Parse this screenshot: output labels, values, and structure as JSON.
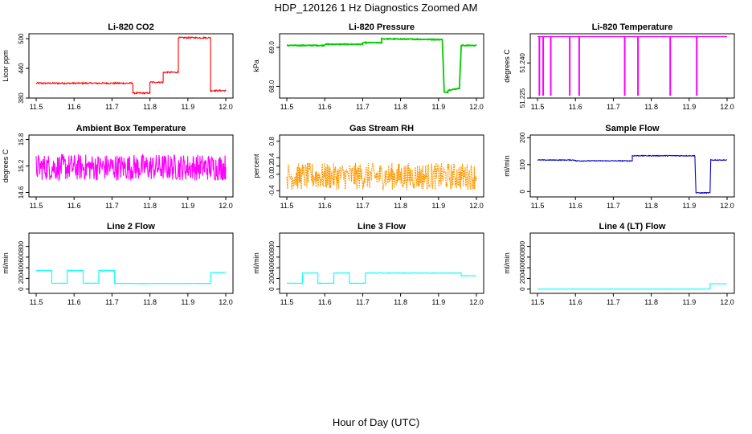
{
  "figure": {
    "title": "HDP_120126  1 Hz Diagnostics Zoomed AM",
    "xlabel": "Hour of Day (UTC)"
  },
  "chart_data": [
    {
      "type": "line",
      "title": "Li-820 CO2",
      "ylabel": "Licor ppm",
      "color": "#ff0000",
      "xlim": [
        11.5,
        12.0
      ],
      "ylim": [
        380,
        510
      ],
      "xticks": [
        11.5,
        11.6,
        11.7,
        11.8,
        11.9,
        12.0
      ],
      "xtick_labels": [
        "11.5",
        "11.6",
        "11.7",
        "11.8",
        "11.9",
        "12.0"
      ],
      "yticks": [
        380,
        440,
        500
      ],
      "ytick_labels": [
        "380",
        "440",
        "500"
      ],
      "x": [
        11.5,
        11.755,
        11.755,
        11.8,
        11.8,
        11.835,
        11.835,
        11.875,
        11.875,
        11.96,
        11.96,
        12.0
      ],
      "y": [
        410,
        410,
        390,
        390,
        412,
        412,
        432,
        432,
        502,
        502,
        395,
        395
      ],
      "noise": 1.5
    },
    {
      "type": "line",
      "title": "Li-820 Pressure",
      "ylabel": "kPa",
      "color": "#00cc00",
      "xlim": [
        11.5,
        12.0
      ],
      "ylim": [
        67.7,
        69.35
      ],
      "xticks": [
        11.5,
        11.6,
        11.7,
        11.8,
        11.9,
        12.0
      ],
      "xtick_labels": [
        "11.5",
        "11.6",
        "11.7",
        "11.8",
        "11.9",
        "12.0"
      ],
      "yticks": [
        68.0,
        69.0
      ],
      "ytick_labels": [
        "68.0",
        "69.0"
      ],
      "x": [
        11.5,
        11.6,
        11.6,
        11.7,
        11.7,
        11.75,
        11.75,
        11.91,
        11.915,
        11.925,
        11.925,
        11.955,
        11.96,
        12.0
      ],
      "y": [
        69.05,
        69.05,
        69.08,
        69.08,
        69.12,
        69.12,
        69.22,
        69.2,
        67.85,
        67.85,
        67.9,
        67.95,
        69.05,
        69.05
      ],
      "noise": 0.01
    },
    {
      "type": "line",
      "title": "Li-820 Temperature",
      "ylabel": "degrees C",
      "color": "#ff00ff",
      "xlim": [
        11.5,
        12.0
      ],
      "ylim": [
        51.225,
        51.2525
      ],
      "xticks": [
        11.5,
        11.6,
        11.7,
        11.8,
        11.9,
        12.0
      ],
      "xtick_labels": [
        "11.5",
        "11.6",
        "11.7",
        "11.8",
        "11.9",
        "12.0"
      ],
      "yticks": [
        51.225,
        51.24
      ],
      "ytick_labels": [
        "51.225",
        "51.240"
      ],
      "baseline": 51.2513,
      "low": 51.226,
      "spikes": [
        11.505,
        11.515,
        11.535,
        11.585,
        11.61,
        11.73,
        11.765,
        11.85,
        11.92
      ],
      "noise": 0
    },
    {
      "type": "line",
      "title": "Ambient Box Temperature",
      "ylabel": "degrees C",
      "color": "#ff00ff",
      "xlim": [
        11.5,
        12.0
      ],
      "ylim": [
        14.5,
        15.9
      ],
      "xticks": [
        11.5,
        11.6,
        11.7,
        11.8,
        11.9,
        12.0
      ],
      "xtick_labels": [
        "11.5",
        "11.6",
        "11.7",
        "11.8",
        "11.9",
        "12.0"
      ],
      "yticks": [
        14.6,
        15.2,
        15.8
      ],
      "ytick_labels": [
        "14.6",
        "15.2",
        "15.8"
      ],
      "x": [
        11.5,
        12.0
      ],
      "y": [
        15.17,
        15.17
      ],
      "noise": 0.3
    },
    {
      "type": "line",
      "title": "Gas Stream RH",
      "ylabel": "percent",
      "color": "#ff9900",
      "xlim": [
        11.5,
        12.0
      ],
      "ylim": [
        -0.55,
        0.95
      ],
      "xticks": [
        11.5,
        11.6,
        11.7,
        11.8,
        11.9,
        12.0
      ],
      "xtick_labels": [
        "11.5",
        "11.6",
        "11.7",
        "11.8",
        "11.9",
        "12.0"
      ],
      "yticks": [
        -0.4,
        0.0,
        0.2,
        0.4,
        0.8
      ],
      "ytick_labels": [
        "-0.4",
        "0.0",
        "0.2",
        "0.4",
        "0.8"
      ],
      "x": [
        11.5,
        12.0
      ],
      "y": [
        -0.05,
        -0.05
      ],
      "noise": 0.33
    },
    {
      "type": "line",
      "title": "Sample Flow",
      "ylabel": "ml/min",
      "color": "#0000cc",
      "xlim": [
        11.5,
        12.0
      ],
      "ylim": [
        -20,
        210
      ],
      "xticks": [
        11.5,
        11.6,
        11.7,
        11.8,
        11.9,
        12.0
      ],
      "xtick_labels": [
        "11.5",
        "11.6",
        "11.7",
        "11.8",
        "11.9",
        "12.0"
      ],
      "yticks": [
        0,
        100,
        200
      ],
      "ytick_labels": [
        "0",
        "100",
        "200"
      ],
      "x": [
        11.5,
        11.6,
        11.6,
        11.75,
        11.75,
        11.915,
        11.918,
        11.955,
        11.957,
        12.0
      ],
      "y": [
        117,
        117,
        114,
        114,
        133,
        133,
        -5,
        -5,
        117,
        117
      ],
      "noise": 1.5
    },
    {
      "type": "line",
      "title": "Line 2 Flow",
      "ylabel": "ml/min",
      "color": "#00ffff",
      "xlim": [
        11.5,
        12.0
      ],
      "ylim": [
        -80,
        1050
      ],
      "xticks": [
        11.5,
        11.6,
        11.7,
        11.8,
        11.9,
        12.0
      ],
      "xtick_labels": [
        "11.5",
        "11.6",
        "11.7",
        "11.8",
        "11.9",
        "12.0"
      ],
      "yticks": [
        0,
        200,
        400,
        600,
        800
      ],
      "ytick_labels": [
        "0",
        "200",
        "400",
        "600",
        "800"
      ],
      "x": [
        11.5,
        11.541,
        11.541,
        11.582,
        11.582,
        11.624,
        11.624,
        11.665,
        11.665,
        11.707,
        11.707,
        11.96,
        11.96,
        12.0
      ],
      "y": [
        350,
        350,
        110,
        110,
        350,
        350,
        110,
        110,
        350,
        350,
        105,
        105,
        310,
        310
      ],
      "noise": 4
    },
    {
      "type": "line",
      "title": "Line 3 Flow",
      "ylabel": "ml/min",
      "color": "#00ffff",
      "xlim": [
        11.5,
        12.0
      ],
      "ylim": [
        -80,
        1050
      ],
      "xticks": [
        11.5,
        11.6,
        11.7,
        11.8,
        11.9,
        12.0
      ],
      "xtick_labels": [
        "11.5",
        "11.6",
        "11.7",
        "11.8",
        "11.9",
        "12.0"
      ],
      "yticks": [
        0,
        200,
        400,
        600,
        800
      ],
      "ytick_labels": [
        "0",
        "200",
        "400",
        "600",
        "800"
      ],
      "x": [
        11.5,
        11.541,
        11.541,
        11.582,
        11.582,
        11.624,
        11.624,
        11.665,
        11.665,
        11.707,
        11.707,
        11.96,
        11.96,
        12.0
      ],
      "y": [
        110,
        110,
        300,
        300,
        110,
        110,
        300,
        300,
        110,
        110,
        300,
        300,
        250,
        250
      ],
      "noise": 4
    },
    {
      "type": "line",
      "title": "Line 4 (LT) Flow",
      "ylabel": "ml/min",
      "color": "#00ffff",
      "xlim": [
        11.5,
        12.0
      ],
      "ylim": [
        -80,
        1050
      ],
      "xticks": [
        11.5,
        11.6,
        11.7,
        11.8,
        11.9,
        12.0
      ],
      "xtick_labels": [
        "11.5",
        "11.6",
        "11.7",
        "11.8",
        "11.9",
        "12.0"
      ],
      "yticks": [
        0,
        200,
        400,
        600,
        800
      ],
      "ytick_labels": [
        "0",
        "200",
        "400",
        "600",
        "800"
      ],
      "x": [
        11.5,
        11.955,
        11.955,
        12.0
      ],
      "y": [
        0,
        0,
        100,
        100
      ],
      "noise": 2
    }
  ]
}
